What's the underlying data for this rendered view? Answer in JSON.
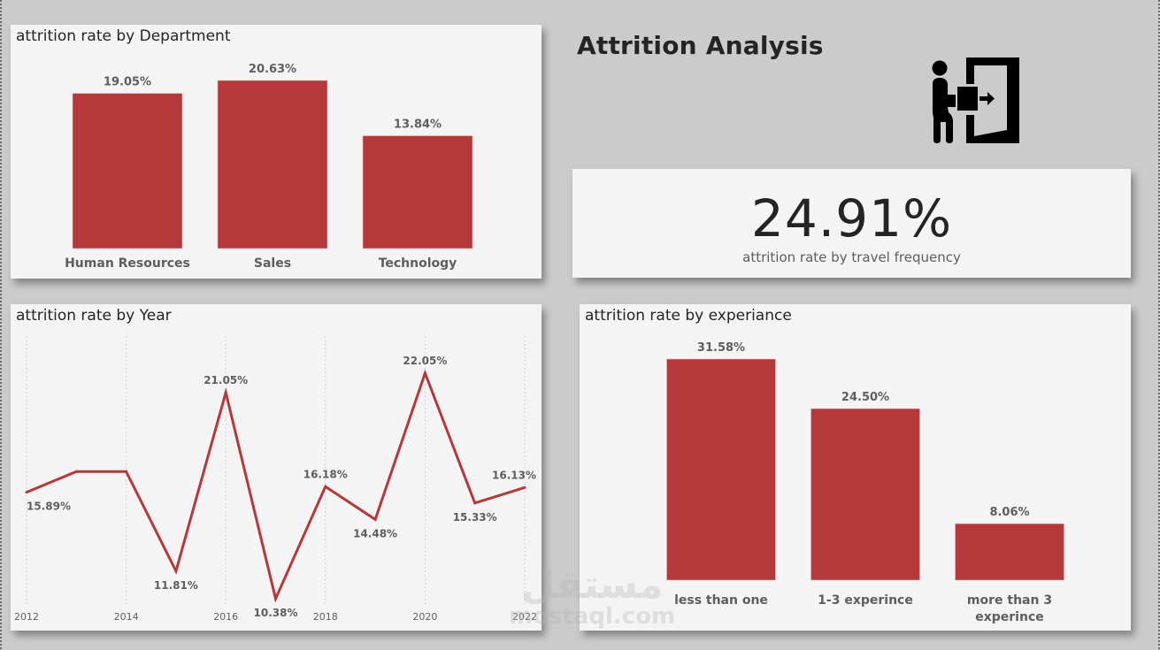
{
  "dashboard": {
    "title": "Attrition Analysis",
    "icon": "employee-leaving-door-icon",
    "accent_color": "#b5393a",
    "watermark": {
      "arabic": "مستقل",
      "latin": "mostaql.com"
    }
  },
  "kpi": {
    "value": "24.91%",
    "label": "attrition rate by travel frequency"
  },
  "chart_data": [
    {
      "id": "department",
      "type": "bar",
      "title": "attrition rate by Department",
      "categories": [
        "Human Resources",
        "Sales",
        "Technology"
      ],
      "values": [
        19.05,
        20.63,
        13.84
      ],
      "labels": [
        "19.05%",
        "20.63%",
        "13.84%"
      ],
      "unit": "%",
      "xlabel": "",
      "ylabel": "",
      "ylim": [
        0,
        20.63
      ],
      "grid": false,
      "color": "#b5393a"
    },
    {
      "id": "year",
      "type": "line",
      "title": "attrition rate by Year",
      "x": [
        2012,
        2013,
        2014,
        2015,
        2016,
        2017,
        2018,
        2019,
        2020,
        2021,
        2022
      ],
      "values": [
        15.89,
        16.96,
        16.96,
        11.81,
        21.05,
        10.38,
        16.18,
        14.48,
        22.05,
        15.33,
        16.13
      ],
      "labels": [
        "15.89%",
        null,
        null,
        "11.81%",
        "21.05%",
        "10.38%",
        "16.18%",
        "14.48%",
        "22.05%",
        "15.33%",
        "16.13%"
      ],
      "label_pos": [
        "below",
        null,
        null,
        "below",
        "above",
        "below",
        "above",
        "below",
        "above",
        "below",
        "above"
      ],
      "xticks": [
        "2012",
        "2014",
        "2016",
        "2018",
        "2020",
        "2022"
      ],
      "unit": "%",
      "xlabel": "",
      "ylabel": "",
      "ylim": [
        10.38,
        22.05
      ],
      "grid": "vertical-dotted",
      "color": "#b5393a"
    },
    {
      "id": "experience",
      "type": "bar",
      "title": "attrition rate by experiance",
      "categories": [
        "less than one",
        "1-3 experince",
        "more than 3 experince"
      ],
      "category_lines": [
        [
          "less than one"
        ],
        [
          "1-3 experince"
        ],
        [
          "more than 3",
          "experince"
        ]
      ],
      "values": [
        31.58,
        24.5,
        8.06
      ],
      "labels": [
        "31.58%",
        "24.50%",
        "8.06%"
      ],
      "unit": "%",
      "xlabel": "",
      "ylabel": "",
      "ylim": [
        0,
        31.58
      ],
      "grid": false,
      "color": "#b5393a"
    }
  ]
}
